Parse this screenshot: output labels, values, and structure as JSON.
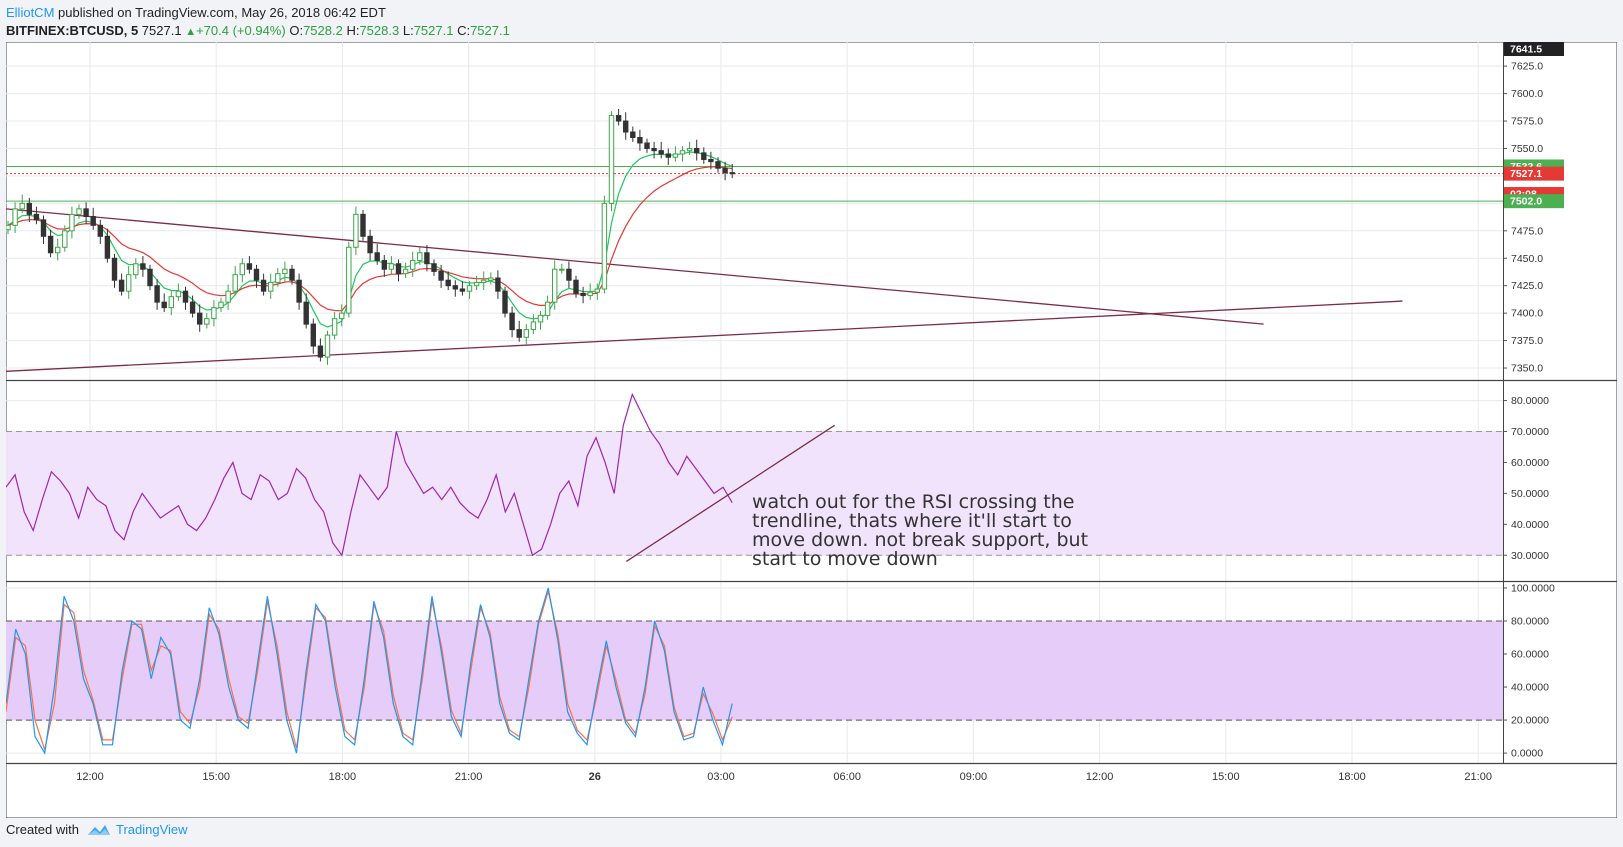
{
  "header": {
    "author": "ElliotCM",
    "published_text": "published on TradingView.com, May 26, 2018 06:42 EDT"
  },
  "legend": {
    "symbol": "BITFINEX:BTCUSD, 5",
    "last": "7527.1",
    "change": "+70.4 (+0.94%)",
    "o_label": "O:",
    "o": "7528.2",
    "h_label": "H:",
    "h": "7528.3",
    "l_label": "L:",
    "l": "7527.1",
    "c_label": "C:",
    "c": "7527.1"
  },
  "footer": {
    "created_with": "Created with",
    "brand": "TradingView"
  },
  "colors": {
    "up": "#3ca64a",
    "down": "#333333",
    "ema_fast": "#22c55e",
    "ema_slow": "#e53935",
    "rsi": "#9c27b0",
    "stoch_k": "#2196f3",
    "stoch_d": "#ff7043",
    "trendline": "#7b2c4a",
    "band_rsi": "#f1e3fb",
    "band_stoch": "#e6ccf8",
    "badge_green": "#4caf50",
    "badge_red": "#e53935"
  },
  "chart_data": [
    {
      "type": "candlestick",
      "title": "BITFINEX:BTCUSD, 5",
      "ylim": [
        7340,
        7647
      ],
      "y_ticks": [
        "7350.0",
        "7375.0",
        "7400.0",
        "7425.0",
        "7450.0",
        "7475.0",
        "7500.0",
        "7525.0",
        "7550.0",
        "7575.0",
        "7600.0",
        "7625.0"
      ],
      "x_ticks": [
        "12:00",
        "15:00",
        "18:00",
        "21:00",
        "26",
        "03:00",
        "06:00",
        "09:00",
        "12:00",
        "15:00",
        "18:00",
        "21:00"
      ],
      "price_badges": [
        {
          "label": "7641.5",
          "value": 7641.5,
          "color": "#222222"
        },
        {
          "label": "7533.6",
          "value": 7533.6,
          "color": "#4caf50"
        },
        {
          "label": "7527.1",
          "value": 7527.1,
          "color": "#e53935"
        },
        {
          "label": "02:08",
          "value": 7508.5,
          "color": "#e53935"
        },
        {
          "label": "7502.0",
          "value": 7502.0,
          "color": "#4caf50"
        }
      ],
      "horizontal_lines": [
        {
          "value": 7533.6,
          "color": "#4caf50"
        },
        {
          "value": 7527.1,
          "color": "#e53935",
          "style": "dotted"
        },
        {
          "value": 7502.0,
          "color": "#4caf50"
        }
      ],
      "closes": [
        7480,
        7495,
        7500,
        7490,
        7485,
        7470,
        7455,
        7460,
        7475,
        7490,
        7495,
        7488,
        7480,
        7470,
        7450,
        7430,
        7420,
        7435,
        7445,
        7440,
        7425,
        7410,
        7405,
        7415,
        7420,
        7410,
        7400,
        7390,
        7395,
        7405,
        7410,
        7420,
        7435,
        7445,
        7440,
        7430,
        7420,
        7428,
        7436,
        7440,
        7430,
        7410,
        7390,
        7370,
        7360,
        7380,
        7395,
        7400,
        7460,
        7490,
        7470,
        7455,
        7448,
        7440,
        7445,
        7436,
        7440,
        7448,
        7455,
        7445,
        7438,
        7430,
        7425,
        7422,
        7420,
        7425,
        7428,
        7430,
        7432,
        7420,
        7400,
        7385,
        7378,
        7385,
        7392,
        7398,
        7410,
        7440,
        7440,
        7430,
        7418,
        7416,
        7419,
        7422,
        7500,
        7580,
        7575,
        7565,
        7560,
        7555,
        7550,
        7548,
        7545,
        7542,
        7545,
        7548,
        7550,
        7546,
        7540,
        7538,
        7532,
        7528,
        7527
      ]
    },
    {
      "type": "line",
      "title": "RSI",
      "ylim": [
        22,
        86
      ],
      "y_ticks": [
        "30.0000",
        "40.0000",
        "50.0000",
        "60.0000",
        "70.0000",
        "80.0000"
      ],
      "band": [
        30,
        70
      ],
      "values": [
        52,
        56,
        44,
        38,
        48,
        57,
        54,
        50,
        42,
        52,
        48,
        46,
        38,
        35,
        44,
        50,
        46,
        42,
        44,
        46,
        40,
        38,
        42,
        48,
        55,
        60,
        50,
        48,
        56,
        54,
        48,
        50,
        58,
        55,
        48,
        44,
        34,
        30,
        44,
        56,
        52,
        48,
        52,
        70,
        60,
        55,
        50,
        52,
        48,
        52,
        47,
        44,
        42,
        48,
        56,
        44,
        50,
        40,
        30,
        32,
        40,
        50,
        54,
        46,
        62,
        68,
        60,
        50,
        72,
        82,
        76,
        70,
        66,
        60,
        56,
        62,
        58,
        54,
        50,
        52,
        47
      ]
    },
    {
      "type": "line",
      "title": "Stoch",
      "ylim": [
        -6,
        103
      ],
      "y_ticks": [
        "0.0000",
        "20.0000",
        "40.0000",
        "60.0000",
        "80.0000",
        "100.0000"
      ],
      "band": [
        20,
        80
      ],
      "series": [
        {
          "values": [
            30,
            75,
            60,
            10,
            0,
            40,
            95,
            80,
            45,
            30,
            5,
            5,
            50,
            80,
            75,
            45,
            70,
            60,
            20,
            15,
            45,
            88,
            72,
            40,
            20,
            15,
            55,
            95,
            60,
            20,
            0,
            50,
            90,
            80,
            40,
            10,
            5,
            45,
            92,
            70,
            30,
            10,
            5,
            50,
            95,
            60,
            22,
            10,
            55,
            90,
            70,
            30,
            12,
            8,
            45,
            80,
            100,
            68,
            25,
            12,
            5,
            38,
            68,
            40,
            18,
            10,
            40,
            80,
            62,
            25,
            8,
            10,
            40,
            20,
            5,
            30
          ]
        },
        {
          "values": [
            25,
            70,
            65,
            20,
            2,
            30,
            90,
            85,
            50,
            32,
            8,
            8,
            45,
            78,
            78,
            50,
            65,
            62,
            25,
            18,
            40,
            84,
            75,
            45,
            22,
            18,
            50,
            92,
            65,
            25,
            3,
            45,
            88,
            82,
            45,
            14,
            8,
            40,
            90,
            74,
            35,
            12,
            8,
            45,
            92,
            64,
            26,
            12,
            50,
            88,
            73,
            34,
            14,
            10,
            40,
            78,
            98,
            72,
            30,
            14,
            8,
            34,
            65,
            44,
            20,
            12,
            36,
            77,
            65,
            28,
            10,
            12,
            36,
            24,
            8,
            22
          ]
        }
      ]
    }
  ],
  "annotation": {
    "lines": [
      "watch out for the RSI crossing the",
      "trendline, thats where it'll start to",
      "move down. not break support, but",
      "start to move down"
    ]
  }
}
